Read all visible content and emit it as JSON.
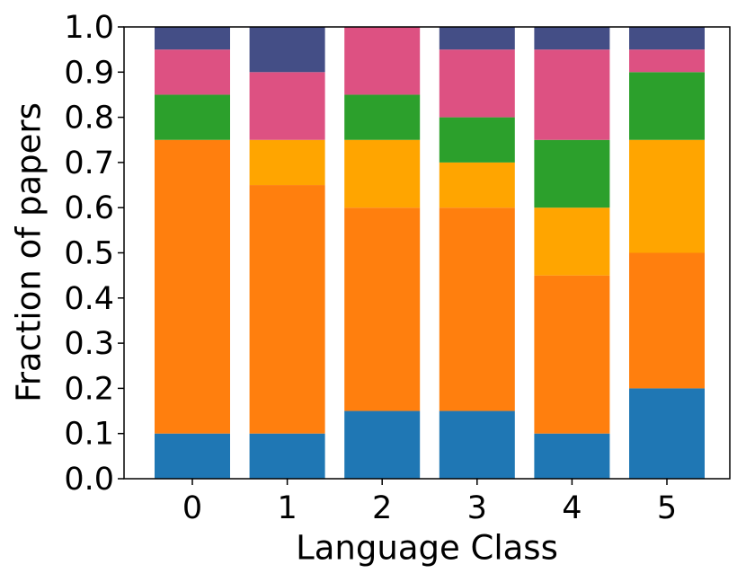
{
  "chart_data": {
    "type": "stacked_bar",
    "x_label": "Language Class",
    "y_label": "Fraction of papers",
    "categories": [
      "0",
      "1",
      "2",
      "3",
      "4",
      "5"
    ],
    "series": [
      {
        "color": "#1f77b4",
        "values": [
          0.1,
          0.1,
          0.15,
          0.15,
          0.1,
          0.2
        ]
      },
      {
        "color": "#ff7f0e",
        "values": [
          0.65,
          0.55,
          0.45,
          0.45,
          0.35,
          0.3
        ]
      },
      {
        "color": "#ffa500",
        "values": [
          0,
          0.1,
          0.15,
          0.1,
          0.15,
          0.25
        ]
      },
      {
        "color": "#2ca02c",
        "values": [
          0.1,
          0,
          0.1,
          0.1,
          0.15,
          0.15
        ]
      },
      {
        "color": "#dd5182",
        "values": [
          0.1,
          0.15,
          0.15,
          0.15,
          0.2,
          0.05
        ]
      },
      {
        "color": "#444e86",
        "values": [
          0.05,
          0.1,
          0,
          0.05,
          0.05,
          0.05
        ]
      }
    ],
    "ylim": [
      0,
      1
    ],
    "yticks": [
      {
        "value": 0,
        "label": "0.0"
      },
      0.1,
      0.2,
      0.3,
      0.4,
      0.5,
      0.6,
      0.7,
      0.8,
      0.9,
      {
        "value": 1,
        "label": "1.0"
      }
    ]
  }
}
